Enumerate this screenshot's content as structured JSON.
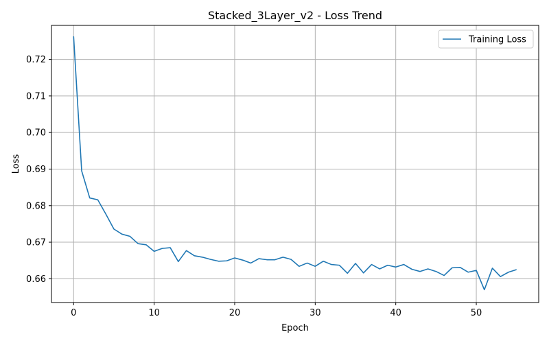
{
  "chart_data": {
    "type": "line",
    "title": "Stacked_3Layer_v2 - Loss Trend",
    "xlabel": "Epoch",
    "ylabel": "Loss",
    "xlim": [
      -2.75,
      57.75
    ],
    "ylim": [
      0.6535,
      0.7293
    ],
    "xticks": [
      0,
      10,
      20,
      30,
      40,
      50
    ],
    "yticks": [
      0.66,
      0.67,
      0.68,
      0.69,
      0.7,
      0.71,
      0.72
    ],
    "ytick_labels": [
      "0.66",
      "0.67",
      "0.68",
      "0.69",
      "0.70",
      "0.71",
      "0.72"
    ],
    "grid": true,
    "legend_position": "top-right",
    "series": [
      {
        "name": "Training Loss",
        "color": "#1f77b4",
        "x": [
          0,
          1,
          2,
          3,
          4,
          5,
          6,
          7,
          8,
          9,
          10,
          11,
          12,
          13,
          14,
          15,
          16,
          17,
          18,
          19,
          20,
          21,
          22,
          23,
          24,
          25,
          26,
          27,
          28,
          29,
          30,
          31,
          32,
          33,
          34,
          35,
          36,
          37,
          38,
          39,
          40,
          41,
          42,
          43,
          44,
          45,
          46,
          47,
          48,
          49,
          50,
          51,
          52,
          53,
          54,
          55
        ],
        "y": [
          0.7263,
          0.6895,
          0.6821,
          0.6816,
          0.6777,
          0.6736,
          0.6722,
          0.6716,
          0.6696,
          0.6693,
          0.6675,
          0.6683,
          0.6685,
          0.6647,
          0.6677,
          0.6663,
          0.6659,
          0.6653,
          0.6648,
          0.6649,
          0.6657,
          0.6651,
          0.6643,
          0.6655,
          0.6652,
          0.6652,
          0.6659,
          0.6653,
          0.6634,
          0.6643,
          0.6634,
          0.6648,
          0.6639,
          0.6637,
          0.6615,
          0.6642,
          0.6616,
          0.6639,
          0.6627,
          0.6637,
          0.6632,
          0.6639,
          0.6626,
          0.662,
          0.6627,
          0.662,
          0.6609,
          0.663,
          0.6631,
          0.6618,
          0.6623,
          0.657,
          0.6629,
          0.6606,
          0.6618,
          0.6625
        ]
      }
    ]
  }
}
